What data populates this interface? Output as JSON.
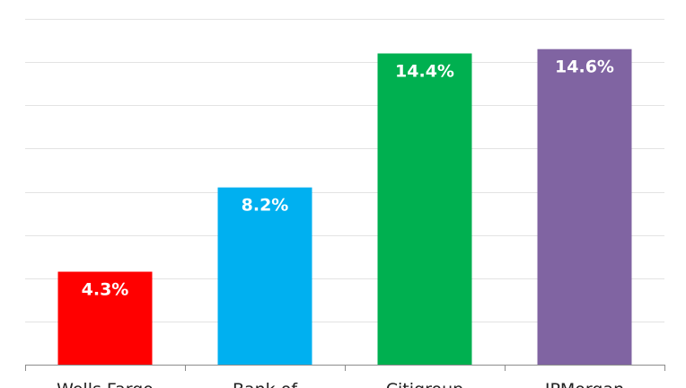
{
  "chart_data": {
    "type": "bar",
    "categories": [
      "Wells Fargo",
      "Bank of",
      "Citigroup",
      "JPMorgan"
    ],
    "values": [
      4.3,
      8.2,
      14.4,
      14.6
    ],
    "value_labels": [
      "4.3%",
      "8.2%",
      "14.4%",
      "14.6%"
    ],
    "colors": [
      "#ff0000",
      "#00b0f0",
      "#00b050",
      "#8064a2"
    ],
    "ylim": [
      0,
      16
    ],
    "grid": true,
    "title": "",
    "xlabel": "",
    "ylabel": ""
  }
}
